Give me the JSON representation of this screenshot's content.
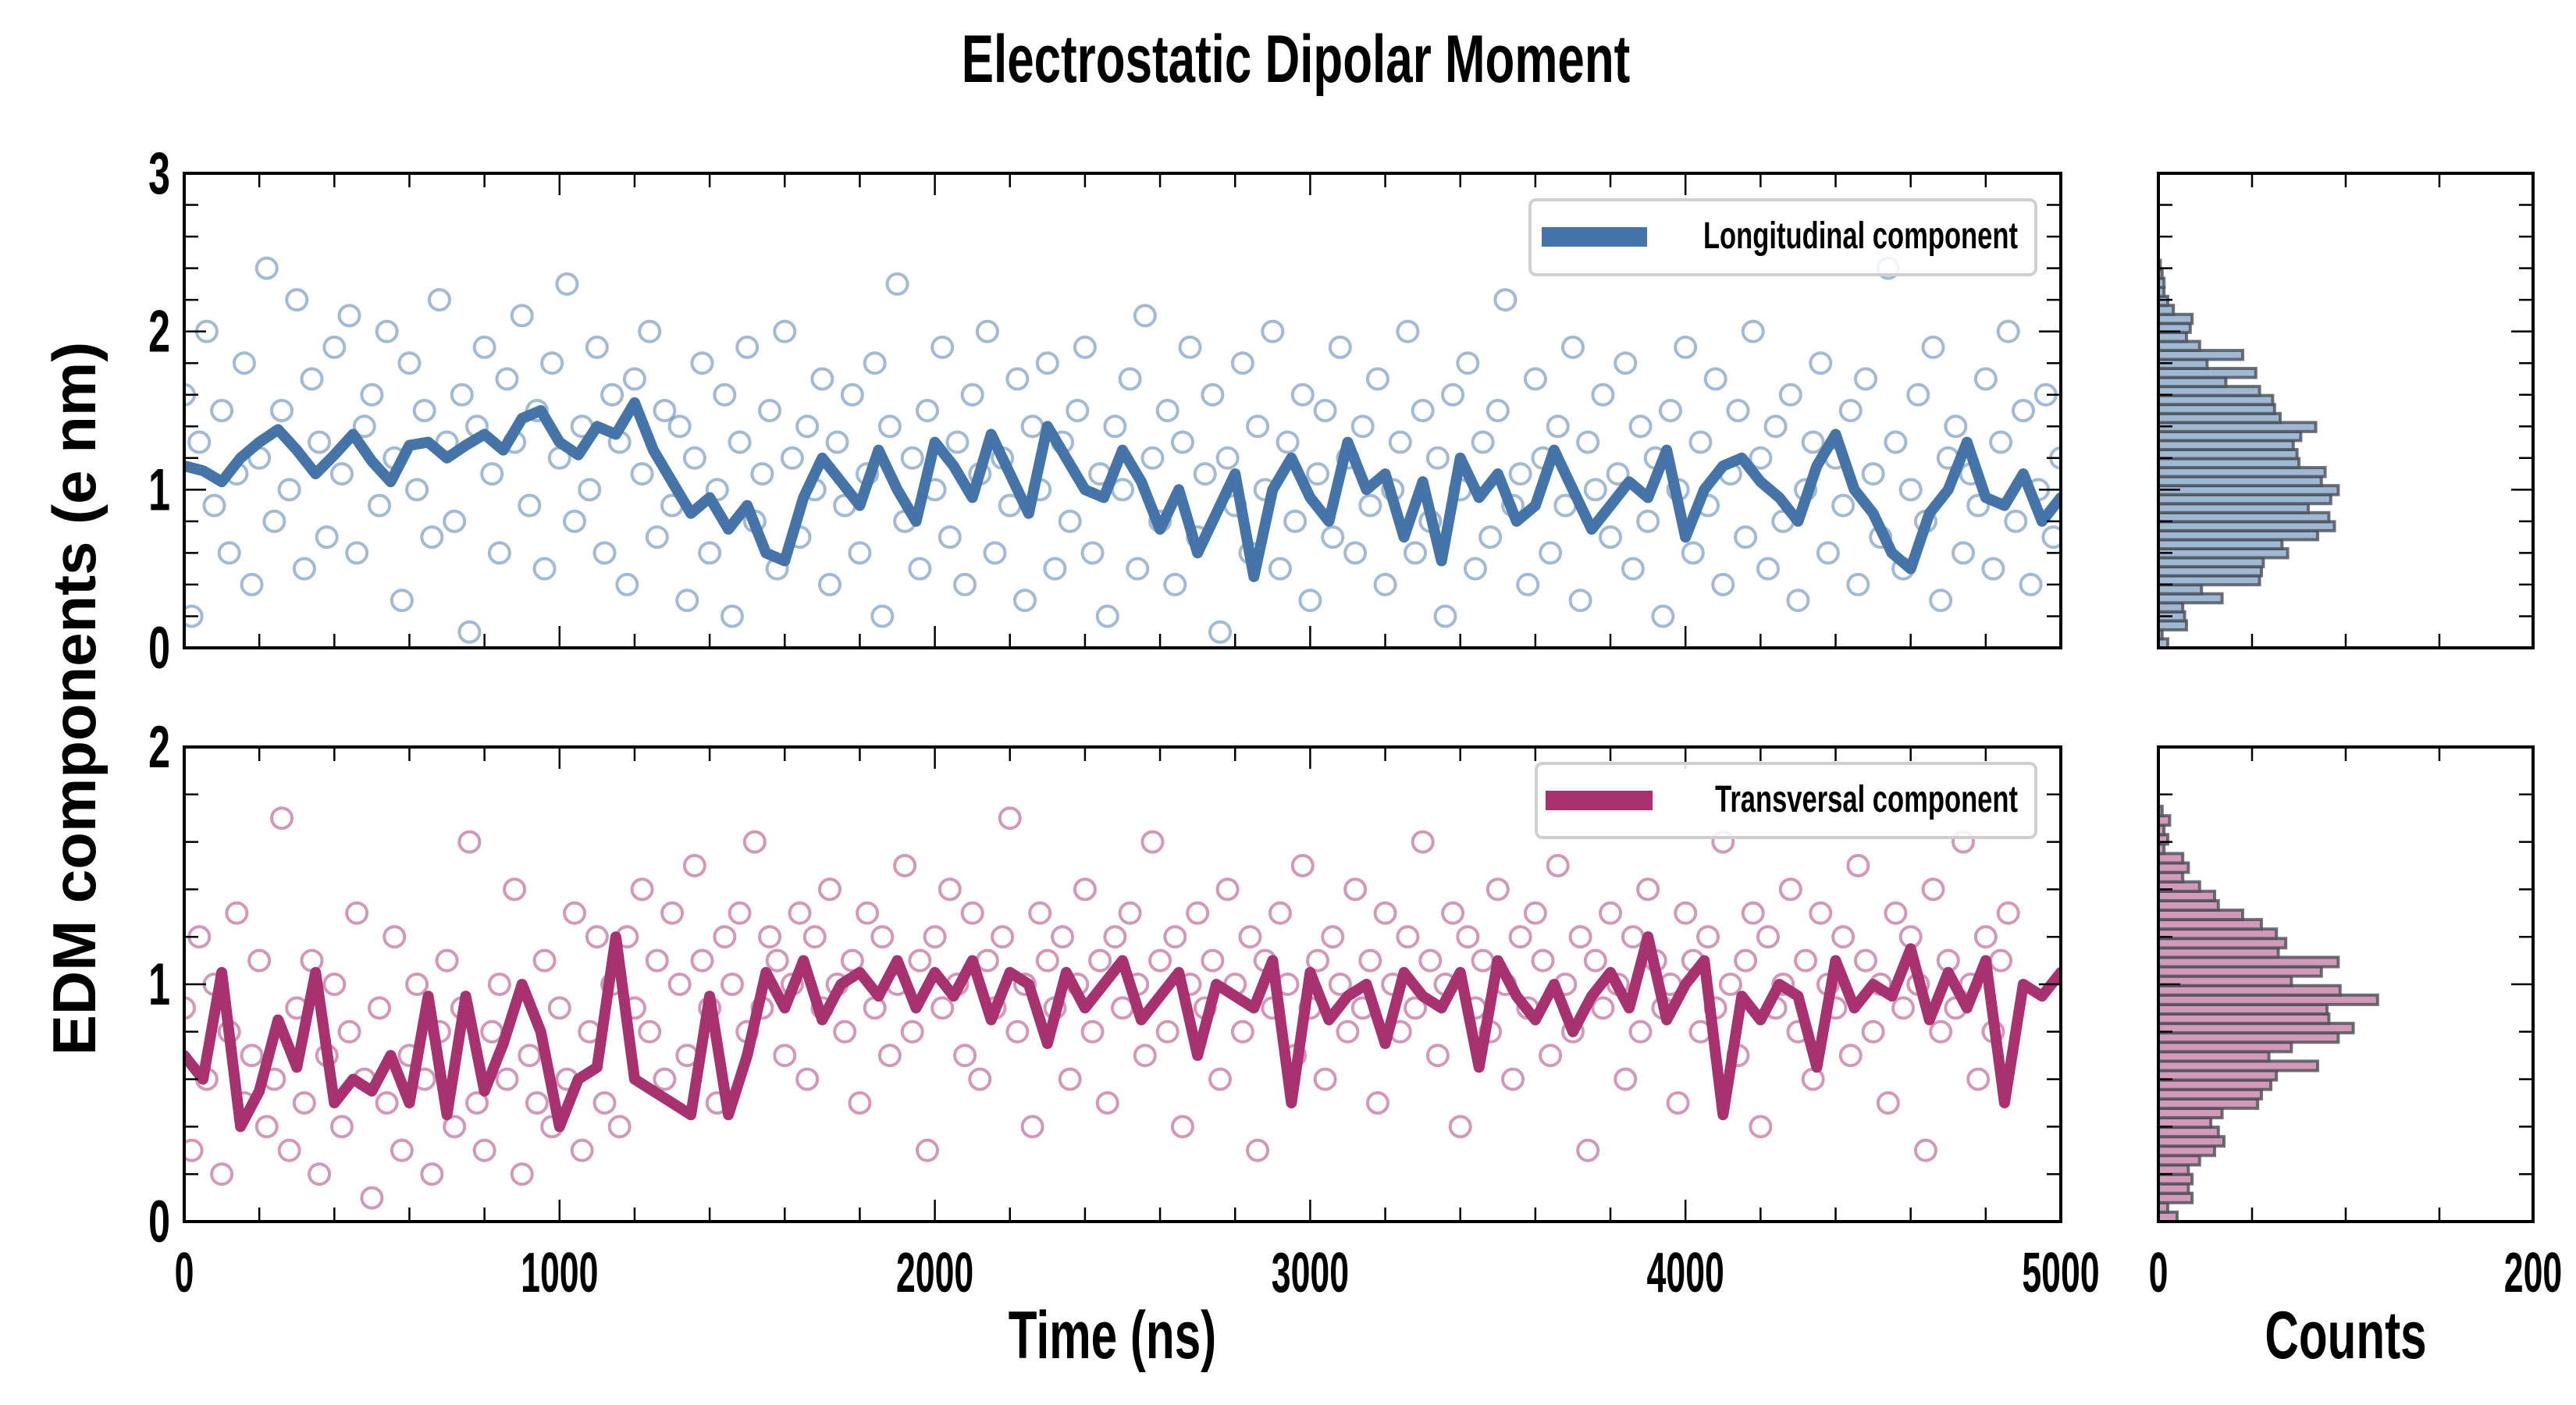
{
  "title": "Electrostatic Dipolar Moment",
  "chart_data": [
    {
      "type": "scatter+line",
      "panel": "top-timeseries",
      "legend": "Longitudinal component",
      "legend_position": "upper-right",
      "color": "#4575a8",
      "xlim": [
        0,
        5000
      ],
      "ylim": [
        0,
        3
      ],
      "yticks": [
        "0",
        "1",
        "2",
        "3"
      ],
      "xticks": [
        "0",
        "1000",
        "2000",
        "3000",
        "4000",
        "5000"
      ],
      "x_minor_step": 200,
      "y_minor_step": 0.2,
      "line": {
        "x_step": 50,
        "y": [
          1.15,
          1.12,
          1.05,
          1.2,
          1.3,
          1.38,
          1.25,
          1.1,
          1.22,
          1.35,
          1.18,
          1.05,
          1.28,
          1.3,
          1.2,
          1.28,
          1.35,
          1.25,
          1.45,
          1.5,
          1.3,
          1.22,
          1.4,
          1.35,
          1.55,
          1.25,
          1.05,
          0.85,
          0.95,
          0.75,
          0.9,
          0.6,
          0.55,
          0.95,
          1.2,
          1.05,
          0.9,
          1.25,
          1.0,
          0.8,
          1.3,
          1.15,
          0.95,
          1.35,
          1.1,
          0.85,
          1.4,
          1.2,
          1.0,
          0.95,
          1.25,
          1.05,
          0.75,
          1.0,
          0.6,
          0.85,
          1.1,
          0.45,
          1.0,
          1.2,
          0.95,
          0.8,
          1.3,
          1.0,
          1.1,
          0.7,
          1.05,
          0.55,
          1.2,
          0.95,
          1.1,
          0.8,
          0.9,
          1.25,
          1.0,
          0.75,
          0.9,
          1.05,
          0.95,
          1.25,
          0.7,
          1.0,
          1.15,
          1.2,
          1.05,
          0.95,
          0.8,
          1.15,
          1.35,
          1.0,
          0.85,
          0.6,
          0.5,
          0.85,
          1.0,
          1.3,
          0.95,
          0.9,
          1.1,
          0.8,
          0.95
        ]
      },
      "scatter": {
        "x_step": 20,
        "y": [
          1.6,
          0.2,
          1.3,
          2.0,
          0.9,
          1.5,
          0.6,
          1.1,
          1.8,
          0.4,
          1.2,
          2.4,
          0.8,
          1.5,
          1.0,
          2.2,
          0.5,
          1.7,
          1.3,
          0.7,
          1.9,
          1.1,
          2.1,
          0.6,
          1.4,
          1.6,
          0.9,
          2.0,
          1.2,
          0.3,
          1.8,
          1.0,
          1.5,
          0.7,
          2.2,
          1.3,
          0.8,
          1.6,
          0.1,
          1.4,
          1.9,
          1.1,
          0.6,
          1.7,
          1.3,
          2.1,
          0.9,
          1.5,
          0.5,
          1.8,
          1.2,
          2.3,
          0.8,
          1.4,
          1.0,
          1.9,
          0.6,
          1.6,
          1.3,
          0.4,
          1.7,
          1.1,
          2.0,
          0.7,
          1.5,
          0.9,
          1.4,
          0.3,
          1.2,
          1.8,
          0.6,
          1.0,
          1.6,
          0.2,
          1.3,
          1.9,
          0.8,
          1.1,
          1.5,
          0.5,
          2.0,
          1.2,
          0.7,
          1.4,
          1.0,
          1.7,
          0.4,
          1.3,
          0.9,
          1.6,
          0.6,
          1.1,
          1.8,
          0.2,
          1.4,
          2.3,
          0.8,
          1.2,
          0.5,
          1.5,
          1.0,
          1.9,
          0.7,
          1.3,
          0.4,
          1.6,
          1.1,
          2.0,
          0.6,
          1.2,
          0.9,
          1.7,
          0.3,
          1.4,
          1.0,
          1.8,
          0.5,
          1.3,
          0.8,
          1.5,
          1.9,
          0.6,
          1.1,
          0.2,
          1.4,
          1.0,
          1.7,
          0.5,
          2.1,
          1.2,
          0.8,
          1.5,
          0.4,
          1.3,
          1.9,
          0.7,
          1.1,
          1.6,
          0.1,
          1.2,
          0.9,
          1.8,
          0.6,
          1.4,
          1.0,
          2.0,
          0.5,
          1.3,
          0.8,
          1.6,
          0.3,
          1.1,
          1.5,
          0.7,
          1.9,
          1.2,
          0.6,
          1.4,
          0.9,
          1.7,
          0.4,
          1.0,
          1.3,
          2.0,
          0.6,
          1.5,
          0.8,
          1.2,
          0.2,
          1.6,
          1.0,
          1.8,
          0.5,
          1.3,
          0.7,
          1.5,
          2.2,
          0.9,
          1.1,
          0.4,
          1.7,
          1.2,
          0.6,
          1.4,
          0.9,
          1.9,
          0.3,
          1.3,
          1.0,
          1.6,
          0.7,
          1.1,
          1.8,
          0.5,
          1.4,
          0.8,
          1.2,
          0.2,
          1.5,
          1.0,
          1.9,
          0.6,
          1.3,
          0.9,
          1.7,
          0.4,
          1.1,
          1.5,
          0.7,
          2.0,
          1.2,
          0.5,
          1.4,
          0.8,
          1.6,
          0.3,
          1.0,
          1.3,
          1.8,
          0.6,
          1.2,
          0.9,
          1.5,
          0.4,
          1.7,
          1.1,
          0.7,
          2.4,
          1.3,
          0.5,
          1.0,
          1.6,
          0.8,
          1.9,
          0.3,
          1.2,
          1.4,
          0.6,
          1.1,
          0.9,
          1.7,
          0.5,
          1.3,
          2.0,
          0.8,
          1.5,
          0.4,
          1.0,
          1.6,
          0.7,
          1.2
        ]
      }
    },
    {
      "type": "scatter+line",
      "panel": "bottom-timeseries",
      "legend": "Transversal component",
      "legend_position": "upper-right",
      "color": "#a83270",
      "xlim": [
        0,
        5000
      ],
      "ylim": [
        0,
        2
      ],
      "yticks": [
        "0",
        "1",
        "2"
      ],
      "xticks": [
        "0",
        "1000",
        "2000",
        "3000",
        "4000",
        "5000"
      ],
      "xlabel": "Time (ns)",
      "x_minor_step": 200,
      "y_minor_step": 0.2,
      "line": {
        "x_step": 50,
        "y": [
          0.7,
          0.6,
          1.05,
          0.4,
          0.55,
          0.85,
          0.65,
          1.05,
          0.5,
          0.6,
          0.55,
          0.7,
          0.5,
          0.95,
          0.45,
          0.95,
          0.55,
          0.75,
          1.0,
          0.8,
          0.4,
          0.6,
          0.65,
          1.2,
          0.6,
          0.55,
          0.5,
          0.45,
          0.95,
          0.45,
          0.7,
          1.05,
          0.9,
          1.1,
          0.85,
          1.0,
          1.05,
          0.95,
          1.1,
          0.9,
          1.05,
          0.95,
          1.1,
          0.85,
          1.05,
          1.0,
          0.75,
          1.05,
          0.9,
          1.0,
          1.1,
          0.85,
          0.95,
          1.05,
          0.7,
          1.0,
          0.95,
          0.9,
          1.1,
          0.5,
          1.05,
          0.85,
          0.95,
          1.0,
          0.75,
          1.05,
          0.95,
          0.9,
          1.05,
          0.65,
          1.1,
          0.95,
          0.85,
          1.0,
          0.8,
          0.95,
          1.05,
          0.9,
          1.2,
          0.85,
          1.0,
          1.1,
          0.45,
          0.95,
          0.85,
          1.0,
          0.95,
          0.65,
          1.1,
          0.9,
          1.0,
          0.95,
          1.15,
          0.85,
          1.05,
          0.9,
          1.1,
          0.5,
          1.0,
          0.95,
          1.05
        ]
      },
      "scatter": {
        "x_step": 20,
        "y": [
          0.9,
          0.3,
          1.2,
          0.6,
          1.0,
          0.2,
          0.8,
          1.3,
          0.5,
          0.7,
          1.1,
          0.4,
          0.6,
          1.7,
          0.3,
          0.9,
          0.5,
          1.1,
          0.2,
          0.7,
          1.0,
          0.4,
          0.8,
          1.3,
          0.6,
          0.1,
          0.9,
          0.5,
          1.2,
          0.3,
          0.7,
          1.0,
          0.6,
          0.2,
          0.8,
          1.1,
          0.4,
          0.9,
          1.6,
          0.5,
          0.3,
          0.8,
          1.0,
          0.6,
          1.4,
          0.2,
          0.7,
          0.5,
          1.1,
          0.4,
          0.9,
          0.6,
          1.3,
          0.3,
          0.8,
          1.2,
          0.5,
          1.0,
          0.4,
          1.2,
          0.9,
          1.4,
          0.8,
          1.1,
          0.6,
          1.3,
          1.0,
          0.7,
          1.5,
          1.1,
          0.9,
          0.5,
          1.2,
          1.0,
          1.3,
          0.8,
          1.6,
          0.9,
          1.2,
          1.1,
          0.7,
          1.0,
          1.3,
          0.6,
          1.2,
          0.9,
          1.4,
          1.0,
          0.8,
          1.1,
          0.5,
          1.3,
          0.9,
          1.2,
          0.7,
          1.0,
          1.5,
          0.8,
          1.1,
          0.3,
          1.2,
          0.9,
          1.4,
          1.0,
          0.7,
          1.3,
          0.6,
          1.1,
          0.9,
          1.2,
          1.7,
          0.8,
          1.0,
          0.4,
          1.3,
          1.1,
          0.9,
          1.2,
          0.6,
          1.0,
          1.4,
          0.8,
          1.1,
          0.5,
          1.2,
          0.9,
          1.3,
          1.0,
          0.7,
          1.6,
          1.1,
          0.8,
          1.2,
          0.4,
          1.0,
          1.3,
          0.9,
          1.1,
          0.6,
          1.4,
          1.0,
          0.8,
          1.2,
          0.3,
          1.1,
          0.9,
          1.3,
          1.0,
          0.7,
          1.5,
          0.9,
          1.1,
          0.6,
          1.2,
          1.0,
          0.8,
          1.4,
          0.9,
          1.1,
          0.5,
          1.3,
          1.0,
          0.8,
          1.2,
          0.9,
          1.6,
          1.1,
          0.7,
          1.0,
          1.3,
          0.4,
          1.2,
          0.9,
          1.1,
          0.8,
          1.4,
          1.0,
          0.6,
          1.2,
          0.9,
          1.3,
          1.1,
          0.7,
          1.5,
          1.0,
          0.8,
          1.2,
          0.3,
          1.1,
          0.9,
          1.3,
          1.0,
          0.6,
          1.2,
          0.8,
          1.4,
          1.1,
          0.9,
          1.0,
          0.5,
          1.3,
          1.1,
          0.8,
          1.2,
          0.9,
          1.6,
          1.0,
          0.7,
          1.1,
          1.3,
          0.4,
          1.2,
          0.9,
          1.0,
          1.4,
          0.8,
          1.1,
          0.6,
          1.3,
          1.0,
          0.9,
          1.2,
          0.7,
          1.5,
          1.1,
          0.8,
          1.0,
          0.5,
          1.3,
          0.9,
          1.2,
          1.0,
          0.3,
          1.4,
          0.8,
          1.1,
          0.9,
          1.6,
          1.0,
          0.6,
          1.2,
          0.8,
          1.1,
          1.3
        ]
      }
    },
    {
      "type": "bar",
      "orientation": "horizontal",
      "panel": "top-histogram",
      "color": "#9fb8d4",
      "edgecolor": "#4a4f57",
      "bin_range": [
        0,
        2.45
      ],
      "xlim": [
        0,
        200
      ],
      "ylim": [
        0,
        3
      ],
      "xticks": [
        "0",
        "200"
      ],
      "x_minor_step": 50,
      "counts_bottom_to_top": [
        5,
        2,
        15,
        14,
        13,
        34,
        23,
        54,
        55,
        56,
        69,
        66,
        85,
        94,
        91,
        80,
        92,
        96,
        87,
        89,
        75,
        74,
        72,
        76,
        84,
        65,
        62,
        61,
        54,
        36,
        52,
        26,
        45,
        22,
        15,
        17,
        18,
        8,
        5,
        3,
        3,
        2,
        1
      ]
    },
    {
      "type": "bar",
      "orientation": "horizontal",
      "panel": "bottom-histogram",
      "color": "#d498b8",
      "edgecolor": "#4a4f57",
      "bin_range": [
        0,
        1.75
      ],
      "xlim": [
        0,
        200
      ],
      "ylim": [
        0,
        2
      ],
      "xticks": [
        "0",
        "200"
      ],
      "xlabel": "Counts",
      "x_minor_step": 50,
      "counts_bottom_to_top": [
        10,
        5,
        18,
        16,
        18,
        16,
        22,
        30,
        35,
        32,
        28,
        34,
        53,
        55,
        60,
        63,
        85,
        59,
        71,
        96,
        104,
        91,
        90,
        117,
        97,
        71,
        87,
        96,
        64,
        68,
        63,
        55,
        45,
        32,
        30,
        22,
        13,
        16,
        13,
        3,
        5,
        3,
        6,
        2
      ]
    }
  ],
  "ylabel": "EDM components (e nm)"
}
